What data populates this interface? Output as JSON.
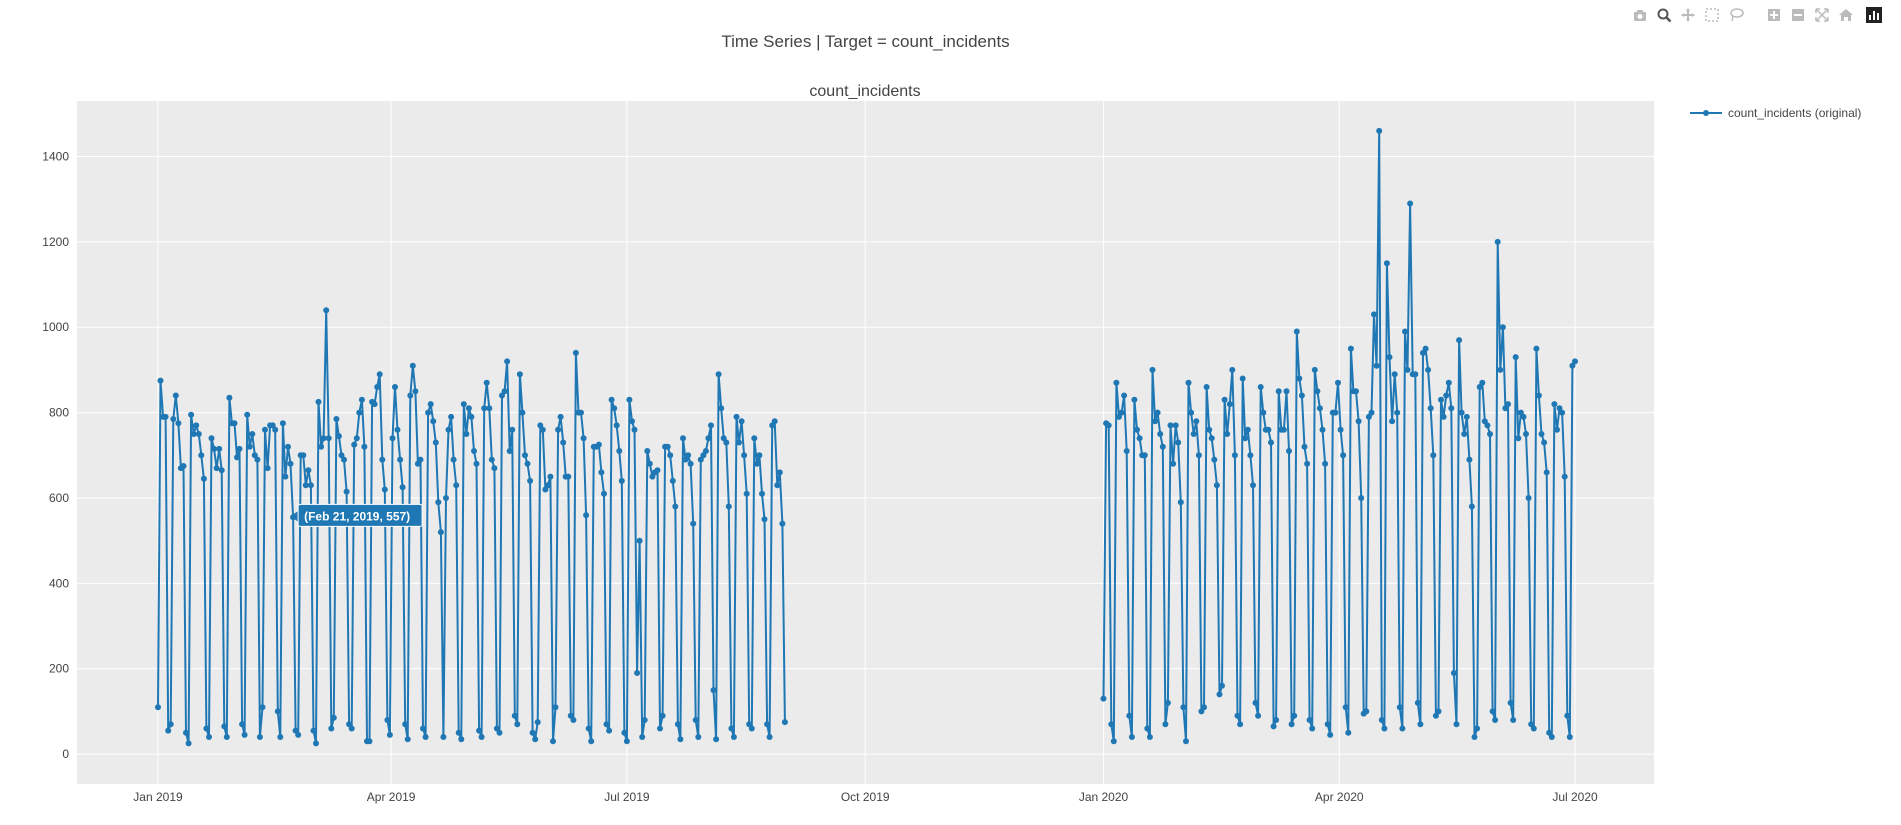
{
  "page": {
    "title": "Time Series | Target = count_incidents"
  },
  "toolbar": {
    "icons": [
      "camera-icon",
      "zoom-icon",
      "pan-icon",
      "box-select-icon",
      "lasso-icon",
      "zoom-in-icon",
      "zoom-out-icon",
      "autoscale-icon",
      "reset-axes-icon",
      "plotly-logo-icon"
    ]
  },
  "legend": {
    "label": "count_incidents (original)"
  },
  "tooltip": {
    "text": "(Feb 21, 2019, 557)"
  },
  "colors": {
    "series": "#1f77b4",
    "plot_bg": "#ebebeb",
    "tooltip_bg": "#1f77b4"
  },
  "chart_data": {
    "type": "line",
    "title": "count_incidents",
    "xlabel": "",
    "ylabel": "",
    "x_ticks": [
      "Jan 2019",
      "Apr 2019",
      "Jul 2019",
      "Oct 2019",
      "Jan 2020",
      "Apr 2020",
      "Jul 2020"
    ],
    "y_ticks": [
      0,
      200,
      400,
      600,
      800,
      1000,
      1200,
      1400
    ],
    "ylim": [
      -70,
      1530
    ],
    "grid": true,
    "legend_position": "top-right",
    "series": [
      {
        "name": "count_incidents (original)",
        "segments": [
          {
            "start": "2019-01-01",
            "end": "2019-08-31",
            "values": [
              110,
              875,
              790,
              790,
              55,
              70,
              785,
              840,
              775,
              670,
              675,
              50,
              25,
              795,
              750,
              770,
              750,
              700,
              645,
              60,
              40,
              740,
              715,
              670,
              715,
              665,
              65,
              40,
              835,
              775,
              775,
              695,
              715,
              70,
              45,
              795,
              720,
              750,
              700,
              690,
              40,
              110,
              760,
              670,
              770,
              770,
              760,
              100,
              40,
              775,
              650,
              720,
              680,
              555,
              55,
              45,
              700,
              700,
              630,
              665,
              630,
              55,
              25,
              825,
              720,
              740,
              1040,
              740,
              60,
              85,
              785,
              745,
              700,
              690,
              615,
              70,
              60,
              725,
              740,
              800,
              830,
              720,
              30,
              30,
              825,
              820,
              860,
              890,
              690,
              620,
              80,
              45,
              740,
              860,
              760,
              690,
              625,
              70,
              35,
              840,
              910,
              850,
              680,
              690,
              60,
              40,
              800,
              820,
              780,
              730,
              590,
              520,
              40,
              600,
              760,
              790,
              690,
              630,
              50,
              35,
              820,
              750,
              810,
              790,
              710,
              680,
              55,
              40,
              810,
              870,
              810,
              690,
              670,
              60,
              50,
              840,
              850,
              920,
              710,
              760,
              90,
              70,
              890,
              800,
              700,
              680,
              640,
              50,
              35,
              75,
              770,
              760,
              620,
              630,
              650,
              30,
              110,
              760,
              790,
              730,
              650,
              650,
              90,
              80,
              940,
              800,
              800,
              740,
              560,
              60,
              30,
              720,
              720,
              725,
              660,
              610,
              70,
              55,
              830,
              810,
              770,
              710,
              640,
              50,
              30,
              830,
              780,
              760,
              190,
              500,
              40,
              80,
              710,
              680,
              650,
              660,
              665,
              60,
              90,
              720,
              720,
              700,
              640,
              580,
              70,
              35,
              740,
              690,
              700,
              680,
              540,
              80,
              40,
              690,
              700,
              710,
              740,
              770,
              150,
              35,
              890,
              810,
              740,
              730,
              580,
              60,
              40,
              790,
              730,
              780,
              700,
              610,
              70,
              60,
              740,
              680,
              700,
              610,
              550,
              70,
              40,
              770,
              780,
              630,
              660,
              540,
              75
            ]
          },
          {
            "start": "2020-01-01",
            "end": "2020-07-01",
            "values": [
              130,
              775,
              770,
              70,
              30,
              870,
              790,
              800,
              840,
              710,
              90,
              40,
              830,
              760,
              740,
              700,
              700,
              60,
              40,
              900,
              780,
              800,
              750,
              720,
              70,
              120,
              770,
              680,
              770,
              730,
              590,
              110,
              30,
              870,
              800,
              750,
              780,
              700,
              100,
              110,
              860,
              760,
              740,
              690,
              630,
              140,
              160,
              830,
              750,
              820,
              900,
              700,
              90,
              70,
              880,
              740,
              760,
              700,
              630,
              120,
              90,
              860,
              800,
              760,
              760,
              730,
              65,
              80,
              850,
              760,
              760,
              850,
              710,
              70,
              90,
              990,
              880,
              840,
              720,
              680,
              80,
              60,
              900,
              850,
              810,
              760,
              680,
              70,
              45,
              800,
              800,
              870,
              760,
              700,
              110,
              50,
              950,
              850,
              850,
              780,
              600,
              95,
              100,
              790,
              800,
              1030,
              910,
              1460,
              80,
              60,
              1150,
              930,
              780,
              890,
              800,
              110,
              60,
              990,
              900,
              1290,
              890,
              890,
              120,
              70,
              940,
              950,
              900,
              810,
              700,
              90,
              100,
              830,
              790,
              840,
              870,
              810,
              190,
              70,
              970,
              800,
              750,
              790,
              690,
              580,
              40,
              60,
              860,
              870,
              780,
              770,
              750,
              100,
              80,
              1200,
              900,
              1000,
              810,
              820,
              120,
              80,
              930,
              740,
              800,
              790,
              750,
              600,
              70,
              60,
              950,
              840,
              750,
              730,
              660,
              50,
              40,
              820,
              760,
              810,
              800,
              650,
              90,
              40,
              910,
              920
            ]
          }
        ]
      }
    ]
  }
}
